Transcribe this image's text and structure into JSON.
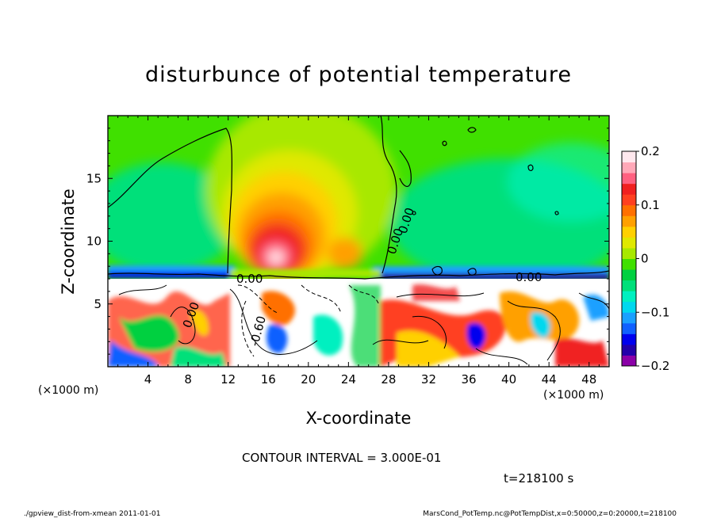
{
  "chart_data": {
    "type": "heatmap",
    "title": "disturbunce of potential temperature",
    "xlabel": "X-coordinate",
    "ylabel": "Z-coordinate",
    "x_unit_left": "(×1000 m)",
    "x_unit_right": "(×1000 m)",
    "xlim": [
      0,
      50
    ],
    "ylim": [
      0,
      20
    ],
    "x_ticks": [
      "4",
      "8",
      "12",
      "16",
      "20",
      "24",
      "28",
      "32",
      "36",
      "40",
      "44",
      "48"
    ],
    "x_tick_values": [
      4,
      8,
      12,
      16,
      20,
      24,
      28,
      32,
      36,
      40,
      44,
      48
    ],
    "y_ticks": [
      "5",
      "10",
      "15"
    ],
    "y_tick_values": [
      5,
      10,
      15
    ],
    "colorbar": {
      "range": [
        -0.2,
        0.2
      ],
      "tick_labels": [
        "0.2",
        "0.1",
        "0",
        "−0.1",
        "−0.2"
      ],
      "tick_values": [
        0.2,
        0.1,
        0,
        -0.1,
        -0.2
      ],
      "colors": [
        "#8b00a8",
        "#2200aa",
        "#0000ee",
        "#1060ff",
        "#1aa0ff",
        "#00d8ee",
        "#00f0c0",
        "#00e07a",
        "#00d040",
        "#40e000",
        "#a8e800",
        "#e0e800",
        "#ffd000",
        "#ffa000",
        "#ff7000",
        "#ff4020",
        "#f02020",
        "#ff6080",
        "#ffa8b8",
        "#ffe8ee"
      ]
    },
    "contour_labels": [
      "0.00",
      "0.00",
      "0.00",
      "-0.60",
      "0.00",
      "0.00"
    ],
    "contour_interval": "CONTOUR INTERVAL = 3.000E-01",
    "time": "t=218100 s"
  },
  "footer": {
    "left": "./gpview_dist-from-xmean  2011-01-01",
    "right": "MarsCond_PotTemp.nc@PotTempDist,x=0:50000,z=0:20000,t=218100"
  }
}
